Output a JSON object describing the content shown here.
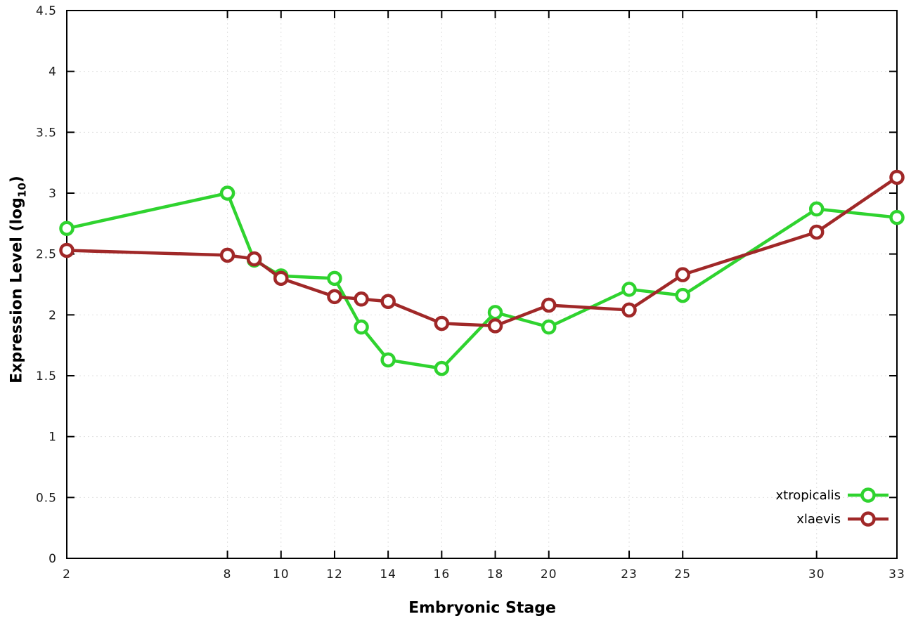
{
  "figure": {
    "background": "#ffffff",
    "border_color": "#000000",
    "grid_color": "#e0e0e0"
  },
  "axis": {
    "y_prefix": "Expression Level (log",
    "y_sub": "10",
    "y_suffix": ")"
  },
  "chart_data": {
    "type": "line",
    "title": "",
    "xlabel": "Embryonic Stage",
    "ylabel": "Expression Level (log10)",
    "xlim": [
      2,
      33
    ],
    "ylim": [
      0,
      4.5
    ],
    "xticks": [
      2,
      8,
      10,
      12,
      14,
      16,
      18,
      20,
      23,
      25,
      30,
      33
    ],
    "xtick_labels": [
      "2",
      "8",
      "10",
      "12",
      "14",
      "16",
      "18",
      "20",
      "23",
      "25",
      "30",
      "33"
    ],
    "yticks": [
      0,
      0.5,
      1,
      1.5,
      2,
      2.5,
      3,
      3.5,
      4,
      4.5
    ],
    "ytick_labels": [
      "0",
      "0.5",
      "1",
      "1.5",
      "2",
      "2.5",
      "3",
      "3.5",
      "4",
      "4.5"
    ],
    "grid": true,
    "legend_position": "bottom-right",
    "x": [
      2,
      8,
      9,
      10,
      12,
      13,
      14,
      16,
      18,
      20,
      23,
      25,
      30,
      33
    ],
    "series": [
      {
        "name": "xtropicalis",
        "color": "#2fd32f",
        "marker": "open-circle",
        "values": [
          2.71,
          3.0,
          2.45,
          2.32,
          2.3,
          1.9,
          1.63,
          1.56,
          2.02,
          1.9,
          2.21,
          2.16,
          2.87,
          2.8
        ]
      },
      {
        "name": "xlaevis",
        "color": "#a02828",
        "marker": "open-circle",
        "values": [
          2.53,
          2.49,
          2.46,
          2.3,
          2.15,
          2.13,
          2.11,
          1.93,
          1.91,
          2.08,
          2.04,
          2.33,
          2.68,
          3.13
        ]
      }
    ]
  }
}
